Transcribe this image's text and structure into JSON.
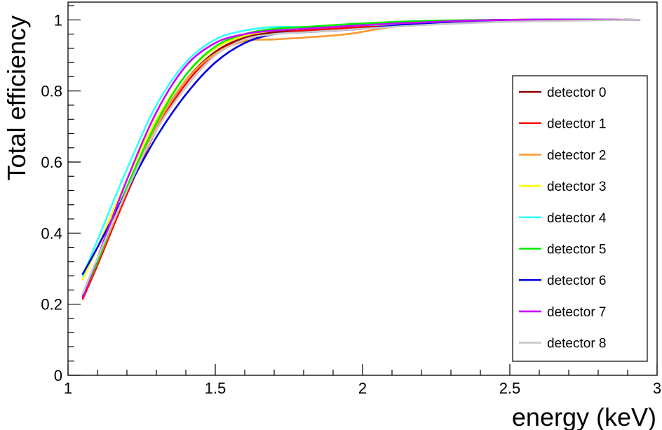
{
  "chart_data": {
    "type": "line",
    "title": "",
    "xlabel": "energy (keV)",
    "ylabel": "Total efficiency",
    "xlim": [
      1,
      3
    ],
    "ylim": [
      0,
      1.05
    ],
    "x_ticks": [
      1,
      1.5,
      2,
      2.5,
      3
    ],
    "x_tick_labels": [
      "1",
      "1.5",
      "2",
      "2.5",
      "3"
    ],
    "y_ticks": [
      0,
      0.2,
      0.4,
      0.6,
      0.8,
      1
    ],
    "y_tick_labels": [
      "0",
      "0.2",
      "0.4",
      "0.6",
      "0.8",
      "1"
    ],
    "grid": false,
    "legend_position": "right",
    "series": [
      {
        "name": "detector 0",
        "color": "#8b0000",
        "x": [
          1.05,
          1.1,
          1.2,
          1.3,
          1.4,
          1.5,
          1.6,
          1.7,
          1.8,
          2.0,
          2.2,
          2.5,
          2.94
        ],
        "y": [
          0.22,
          0.32,
          0.52,
          0.7,
          0.83,
          0.91,
          0.95,
          0.965,
          0.97,
          0.98,
          0.99,
          1.0,
          1.0
        ]
      },
      {
        "name": "detector 1",
        "color": "#ff0000",
        "x": [
          1.05,
          1.1,
          1.2,
          1.3,
          1.4,
          1.5,
          1.6,
          1.7,
          1.8,
          2.0,
          2.2,
          2.5,
          2.94
        ],
        "y": [
          0.215,
          0.31,
          0.51,
          0.69,
          0.82,
          0.905,
          0.945,
          0.96,
          0.97,
          0.98,
          0.99,
          1.0,
          1.0
        ]
      },
      {
        "name": "detector 2",
        "color": "#ff9933",
        "x": [
          1.05,
          1.1,
          1.2,
          1.3,
          1.4,
          1.5,
          1.6,
          1.7,
          1.8,
          1.95,
          2.1,
          2.3,
          2.5,
          2.94
        ],
        "y": [
          0.225,
          0.32,
          0.52,
          0.7,
          0.83,
          0.905,
          0.94,
          0.945,
          0.95,
          0.96,
          0.98,
          0.995,
          1.0,
          1.0
        ]
      },
      {
        "name": "detector 3",
        "color": "#ffff00",
        "x": [
          1.05,
          1.1,
          1.2,
          1.3,
          1.4,
          1.5,
          1.6,
          1.7,
          1.8,
          2.0,
          2.2,
          2.5,
          2.94
        ],
        "y": [
          0.27,
          0.36,
          0.55,
          0.72,
          0.845,
          0.92,
          0.955,
          0.97,
          0.975,
          0.985,
          0.993,
          1.0,
          1.0
        ]
      },
      {
        "name": "detector 4",
        "color": "#33ffff",
        "x": [
          1.05,
          1.1,
          1.2,
          1.3,
          1.4,
          1.5,
          1.6,
          1.7,
          1.8,
          2.0,
          2.2,
          2.5,
          2.94
        ],
        "y": [
          0.28,
          0.38,
          0.58,
          0.76,
          0.88,
          0.945,
          0.97,
          0.98,
          0.98,
          0.985,
          0.99,
          1.0,
          1.0
        ]
      },
      {
        "name": "detector 5",
        "color": "#00ee00",
        "x": [
          1.05,
          1.1,
          1.2,
          1.3,
          1.4,
          1.5,
          1.6,
          1.7,
          1.8,
          2.0,
          2.2,
          2.5,
          2.94
        ],
        "y": [
          0.225,
          0.32,
          0.53,
          0.71,
          0.845,
          0.925,
          0.96,
          0.975,
          0.98,
          0.99,
          0.997,
          1.0,
          1.0
        ]
      },
      {
        "name": "detector 6",
        "color": "#0000dd",
        "x": [
          1.05,
          1.1,
          1.2,
          1.3,
          1.4,
          1.5,
          1.6,
          1.7,
          1.8,
          2.0,
          2.2,
          2.5,
          2.94
        ],
        "y": [
          0.285,
          0.36,
          0.52,
          0.67,
          0.79,
          0.88,
          0.935,
          0.96,
          0.965,
          0.975,
          0.99,
          1.0,
          1.0
        ]
      },
      {
        "name": "detector 7",
        "color": "#cc00ff",
        "x": [
          1.05,
          1.1,
          1.2,
          1.3,
          1.4,
          1.5,
          1.6,
          1.7,
          1.8,
          2.0,
          2.2,
          2.5,
          2.94
        ],
        "y": [
          0.22,
          0.33,
          0.55,
          0.74,
          0.87,
          0.935,
          0.96,
          0.97,
          0.975,
          0.985,
          0.993,
          1.0,
          1.0
        ]
      },
      {
        "name": "detector 8",
        "color": "#c8c8c8",
        "x": [
          1.05,
          1.1,
          1.2,
          1.3,
          1.4,
          1.5,
          1.6,
          1.7,
          1.8,
          2.0,
          2.2,
          2.5,
          2.94
        ],
        "y": [
          0.23,
          0.33,
          0.52,
          0.69,
          0.81,
          0.9,
          0.945,
          0.96,
          0.965,
          0.975,
          0.985,
          0.995,
          1.0
        ]
      }
    ]
  }
}
